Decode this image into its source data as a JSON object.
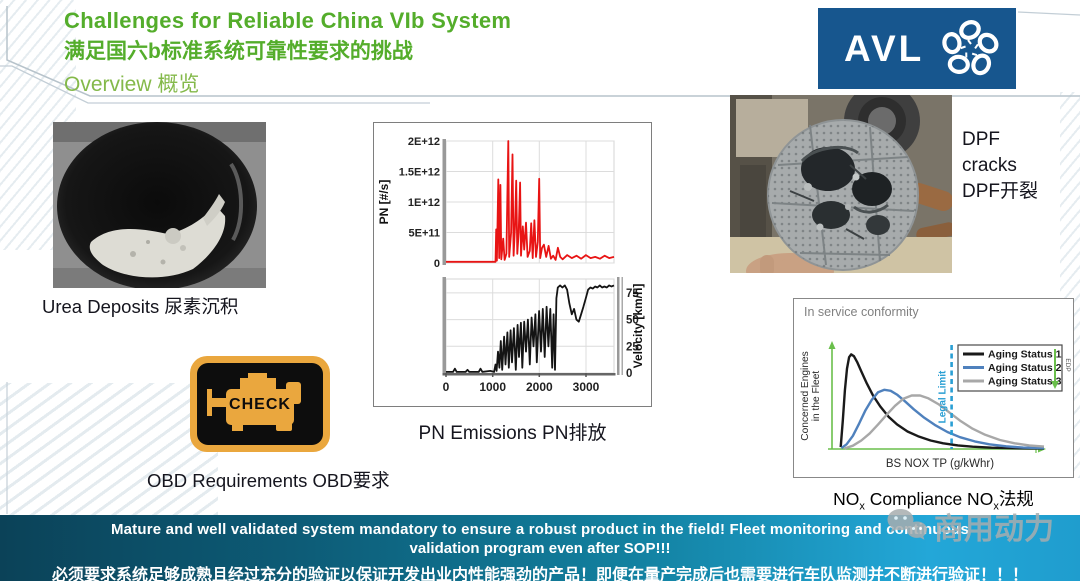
{
  "slide": {
    "title_en": "Challenges for Reliable China VIb System",
    "title_zh": "满足国六b标准系统可靠性要求的挑战",
    "subtitle": "Overview 概览",
    "logo": {
      "text": "AVL"
    },
    "colors": {
      "title_green": "#54ad2b",
      "subtitle_green": "#84b94a",
      "logo_blue": "#17568e",
      "banner_left": "#0b4258",
      "banner_right": "#23a7d8",
      "caption_dark": "#15151e",
      "obd_amber": "#eaa73e",
      "pn_red": "#e81414",
      "aging1_black": "#1a1a1a",
      "aging2_blue": "#4f81bd",
      "aging3_gray": "#a8a8a8",
      "legal_limit_blue": "#2a9fd4",
      "axis_green": "#6abf4b"
    },
    "captions": {
      "urea": "Urea Deposits 尿素沉积",
      "pn": "PN Emissions PN排放",
      "obd": "OBD Requirements OBD要求"
    },
    "dpf_label": [
      "DPF",
      "cracks",
      "DPF开裂"
    ],
    "obd_icon_text": "CHECK",
    "nox_caption": {
      "p1": "NO",
      "sub1": "x",
      "p2": " Compliance NO",
      "sub2": "x",
      "p3": "法规"
    },
    "banner": {
      "line1": "Mature and well validated system mandatory to ensure a robust product in the field! Fleet monitoring and continuous",
      "line2": "validation program even after SOP!!!",
      "line3": "必须要求系统足够成熟且经过充分的验证以保证开发出业内性能强劲的产品！即便在量产完成后也需要进行车队监测并不断进行验证！！！"
    },
    "watermark": "商用动力"
  },
  "chart_data": [
    {
      "id": "pn",
      "type": "line",
      "title": "PN Emissions PN排放",
      "xlim": [
        0,
        3600
      ],
      "xticks": [
        0,
        1000,
        2000,
        3000
      ],
      "panels": [
        {
          "ylabel": "PN [#/s]",
          "ylim": [
            0,
            200
          ],
          "y_scale": 10000000000.0,
          "yticks": [
            0,
            50,
            100,
            150,
            200
          ],
          "ytick_labels": [
            "0",
            "5E+11",
            "1E+12",
            "1.5E+12",
            "2E+12"
          ],
          "series": [
            {
              "name": "PN",
              "color": "#e81414",
              "points": [
                [
                  0,
                  2
                ],
                [
                  1000,
                  2
                ],
                [
                  1060,
                  2
                ],
                [
                  1075,
                  55
                ],
                [
                  1090,
                  4
                ],
                [
                  1120,
                  137
                ],
                [
                  1140,
                  8
                ],
                [
                  1165,
                  128
                ],
                [
                  1185,
                  6
                ],
                [
                  1225,
                  40
                ],
                [
                  1255,
                  5
                ],
                [
                  1295,
                  15
                ],
                [
                  1335,
                  200
                ],
                [
                  1355,
                  10
                ],
                [
                  1395,
                  50
                ],
                [
                  1425,
                  178
                ],
                [
                  1448,
                  12
                ],
                [
                  1478,
                  60
                ],
                [
                  1505,
                  135
                ],
                [
                  1528,
                  15
                ],
                [
                  1558,
                  50
                ],
                [
                  1588,
                  132
                ],
                [
                  1608,
                  12
                ],
                [
                  1645,
                  60
                ],
                [
                  1675,
                  22
                ],
                [
                  1715,
                  66
                ],
                [
                  1748,
                  10
                ],
                [
                  1795,
                  20
                ],
                [
                  1825,
                  65
                ],
                [
                  1858,
                  8
                ],
                [
                  1895,
                  70
                ],
                [
                  1928,
                  10
                ],
                [
                  1968,
                  35
                ],
                [
                  1998,
                  138
                ],
                [
                  2018,
                  8
                ],
                [
                  2058,
                  25
                ],
                [
                  2098,
                  30
                ],
                [
                  2148,
                  10
                ],
                [
                  2198,
                  28
                ],
                [
                  2248,
                  7
                ],
                [
                  2298,
                  12
                ],
                [
                  2348,
                  5
                ],
                [
                  2398,
                  25
                ],
                [
                  2448,
                  10
                ],
                [
                  2498,
                  6
                ],
                [
                  2598,
                  13
                ],
                [
                  2698,
                  8
                ],
                [
                  2798,
                  12
                ],
                [
                  2898,
                  7
                ],
                [
                  2998,
                  13
                ],
                [
                  3098,
                  8
                ],
                [
                  3198,
                  10
                ],
                [
                  3298,
                  7
                ],
                [
                  3398,
                  12
                ],
                [
                  3498,
                  8
                ],
                [
                  3600,
                  10
                ]
              ]
            }
          ]
        },
        {
          "ylabel": "Velocity [km/h]",
          "ylim": [
            0,
            88
          ],
          "yticks": [
            0,
            25,
            50,
            75
          ],
          "ytick_labels": [
            "0",
            "25",
            "50",
            "75"
          ],
          "axis_side": "right",
          "series": [
            {
              "name": "Velocity",
              "color": "#141414",
              "points": [
                [
                  0,
                  1
                ],
                [
                  150,
                  1
                ],
                [
                  190,
                  4
                ],
                [
                  230,
                  1
                ],
                [
                  420,
                  1
                ],
                [
                  460,
                  3
                ],
                [
                  500,
                  1
                ],
                [
                  700,
                  1
                ],
                [
                  740,
                  4
                ],
                [
                  780,
                  1
                ],
                [
                  950,
                  2
                ],
                [
                  1030,
                  1
                ],
                [
                  1060,
                  8
                ],
                [
                  1085,
                  2
                ],
                [
                  1115,
                  20
                ],
                [
                  1145,
                  5
                ],
                [
                  1175,
                  30
                ],
                [
                  1205,
                  3
                ],
                [
                  1245,
                  34
                ],
                [
                  1275,
                  8
                ],
                [
                  1315,
                  38
                ],
                [
                  1345,
                  5
                ],
                [
                  1385,
                  40
                ],
                [
                  1415,
                  10
                ],
                [
                  1455,
                  42
                ],
                [
                  1495,
                  3
                ],
                [
                  1535,
                  45
                ],
                [
                  1565,
                  15
                ],
                [
                  1605,
                  47
                ],
                [
                  1635,
                  5
                ],
                [
                  1675,
                  48
                ],
                [
                  1715,
                  20
                ],
                [
                  1755,
                  50
                ],
                [
                  1795,
                  8
                ],
                [
                  1835,
                  52
                ],
                [
                  1875,
                  25
                ],
                [
                  1915,
                  55
                ],
                [
                  1945,
                  10
                ],
                [
                  1995,
                  58
                ],
                [
                  2035,
                  20
                ],
                [
                  2075,
                  60
                ],
                [
                  2115,
                  15
                ],
                [
                  2155,
                  62
                ],
                [
                  2195,
                  25
                ],
                [
                  2235,
                  60
                ],
                [
                  2275,
                  5
                ],
                [
                  2305,
                  55
                ],
                [
                  2335,
                  3
                ],
                [
                  2365,
                  70
                ],
                [
                  2395,
                  80
                ],
                [
                  2445,
                  82
                ],
                [
                  2495,
                  80
                ],
                [
                  2545,
                  82
                ],
                [
                  2595,
                  78
                ],
                [
                  2645,
                  65
                ],
                [
                  2695,
                  55
                ],
                [
                  2745,
                  60
                ],
                [
                  2795,
                  50
                ],
                [
                  2845,
                  48
                ],
                [
                  2895,
                  55
                ],
                [
                  2945,
                  62
                ],
                [
                  2995,
                  70
                ],
                [
                  3045,
                  78
                ],
                [
                  3095,
                  80
                ],
                [
                  3145,
                  79
                ],
                [
                  3195,
                  81
                ],
                [
                  3245,
                  80
                ],
                [
                  3295,
                  82
                ],
                [
                  3345,
                  80
                ],
                [
                  3395,
                  81
                ],
                [
                  3445,
                  80
                ],
                [
                  3495,
                  82
                ],
                [
                  3545,
                  81
                ],
                [
                  3600,
                  82
                ]
              ]
            }
          ]
        }
      ]
    },
    {
      "id": "nox",
      "type": "line",
      "title": "In service conformity",
      "xlabel": "BS NOX TP (g/kWhr)",
      "ylabel_lines": [
        "Concerned Engines",
        "in the Fleet"
      ],
      "xlim": [
        0,
        10
      ],
      "ylim": [
        0,
        1.12
      ],
      "legend": [
        "Aging Status 1",
        "Aging Status 2",
        "Aging Status 3"
      ],
      "legend_position": "top-right",
      "legal_limit": {
        "x": 5.6,
        "label": "Legal Limit",
        "color": "#2a9fd4"
      },
      "edp_note": "EDP",
      "series": [
        {
          "name": "Aging Status 1",
          "color": "#1a1a1a",
          "points": [
            [
              0.32,
              0.02
            ],
            [
              0.42,
              0.3
            ],
            [
              0.52,
              0.62
            ],
            [
              0.62,
              0.85
            ],
            [
              0.72,
              0.97
            ],
            [
              0.82,
              1.0
            ],
            [
              0.95,
              0.98
            ],
            [
              1.1,
              0.92
            ],
            [
              1.3,
              0.82
            ],
            [
              1.55,
              0.7
            ],
            [
              1.85,
              0.57
            ],
            [
              2.2,
              0.45
            ],
            [
              2.6,
              0.34
            ],
            [
              3.0,
              0.26
            ],
            [
              3.5,
              0.185
            ],
            [
              4.0,
              0.135
            ],
            [
              4.6,
              0.09
            ],
            [
              5.2,
              0.06
            ],
            [
              5.9,
              0.038
            ],
            [
              6.6,
              0.024
            ],
            [
              7.5,
              0.014
            ],
            [
              8.5,
              0.008
            ],
            [
              10,
              0.004
            ]
          ]
        },
        {
          "name": "Aging Status 2",
          "color": "#4f81bd",
          "points": [
            [
              0.35,
              0.01
            ],
            [
              0.6,
              0.05
            ],
            [
              0.9,
              0.14
            ],
            [
              1.2,
              0.27
            ],
            [
              1.5,
              0.41
            ],
            [
              1.8,
              0.52
            ],
            [
              2.1,
              0.6
            ],
            [
              2.4,
              0.625
            ],
            [
              2.7,
              0.615
            ],
            [
              3.0,
              0.575
            ],
            [
              3.4,
              0.5
            ],
            [
              3.8,
              0.42
            ],
            [
              4.3,
              0.33
            ],
            [
              4.8,
              0.255
            ],
            [
              5.4,
              0.18
            ],
            [
              6.0,
              0.125
            ],
            [
              6.7,
              0.08
            ],
            [
              7.4,
              0.05
            ],
            [
              8.2,
              0.028
            ],
            [
              9.0,
              0.015
            ],
            [
              10,
              0.008
            ]
          ]
        },
        {
          "name": "Aging Status 3",
          "color": "#a8a8a8",
          "points": [
            [
              0.5,
              0.005
            ],
            [
              0.9,
              0.035
            ],
            [
              1.3,
              0.09
            ],
            [
              1.7,
              0.165
            ],
            [
              2.1,
              0.26
            ],
            [
              2.5,
              0.36
            ],
            [
              2.9,
              0.455
            ],
            [
              3.3,
              0.53
            ],
            [
              3.7,
              0.565
            ],
            [
              4.1,
              0.565
            ],
            [
              4.5,
              0.535
            ],
            [
              5.0,
              0.47
            ],
            [
              5.5,
              0.385
            ],
            [
              6.0,
              0.3
            ],
            [
              6.6,
              0.215
            ],
            [
              7.2,
              0.15
            ],
            [
              7.9,
              0.095
            ],
            [
              8.6,
              0.06
            ],
            [
              9.3,
              0.038
            ],
            [
              10,
              0.025
            ]
          ]
        }
      ]
    }
  ]
}
